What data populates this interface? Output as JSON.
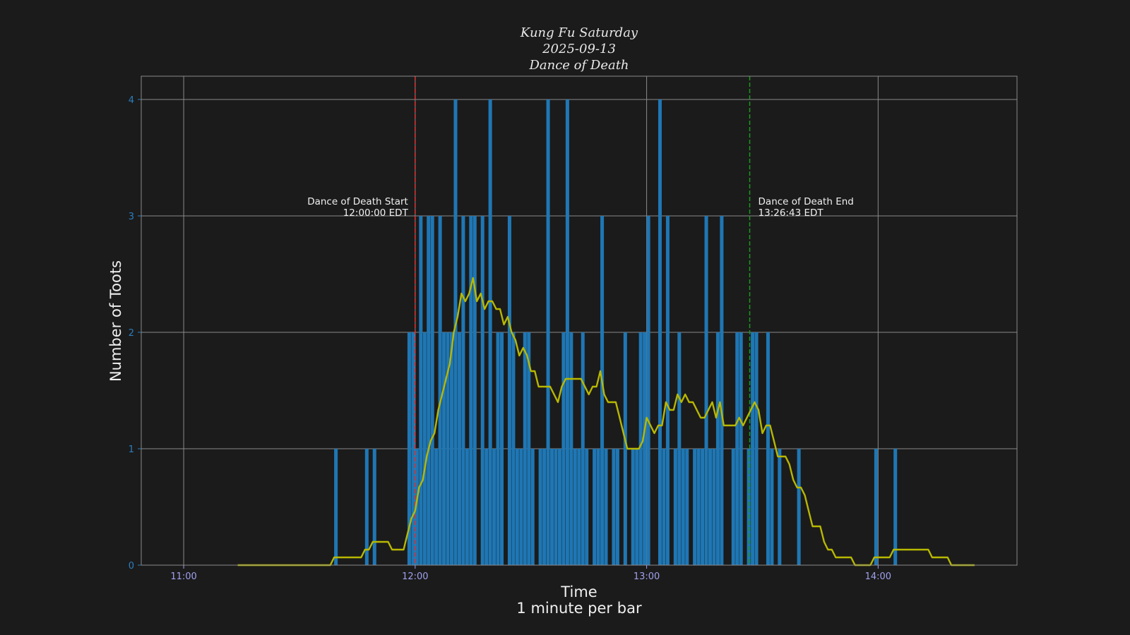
{
  "chart_data": {
    "type": "bar",
    "title": [
      "Kung Fu Saturday",
      "2025-09-13",
      "Dance of Death"
    ],
    "xlabel": [
      "Time",
      "1 minute per bar"
    ],
    "ylabel": "Number of Toots",
    "xlim": [
      "10:49",
      "14:36"
    ],
    "ylim": [
      0,
      4.2
    ],
    "x_ticks": [
      "11:00",
      "12:00",
      "13:00",
      "14:00"
    ],
    "y_ticks": [
      "0",
      "1",
      "2",
      "3",
      "4"
    ],
    "grid": true,
    "bars": {
      "color": "#1f77b4",
      "start": "11:39",
      "values": [
        1,
        0,
        0,
        0,
        0,
        0,
        0,
        0,
        1,
        0,
        1,
        0,
        0,
        0,
        0,
        0,
        0,
        0,
        0,
        2,
        2,
        1,
        3,
        2,
        3,
        3,
        1,
        3,
        2,
        2,
        2,
        4,
        2,
        3,
        1,
        3,
        3,
        0,
        3,
        1,
        4,
        1,
        2,
        2,
        0,
        3,
        2,
        1,
        1,
        2,
        2,
        1,
        0,
        1,
        1,
        4,
        1,
        1,
        1,
        2,
        4,
        2,
        1,
        1,
        2,
        1,
        0,
        1,
        1,
        3,
        1,
        0,
        1,
        1,
        0,
        2,
        0,
        1,
        1,
        2,
        2,
        3,
        0,
        0,
        4,
        1,
        3,
        0,
        1,
        2,
        1,
        1,
        0,
        1,
        1,
        1,
        3,
        1,
        1,
        2,
        3,
        0,
        0,
        1,
        2,
        2,
        0,
        1,
        2,
        2,
        0,
        0,
        2,
        1,
        0,
        1,
        0,
        0,
        0,
        0,
        1,
        0,
        0,
        0,
        0,
        0,
        0,
        0,
        0,
        0,
        0,
        0,
        0,
        0,
        0,
        0,
        0,
        0,
        0,
        0,
        1,
        0,
        0,
        0,
        0,
        1
      ]
    },
    "line": {
      "color": "#b8b800",
      "x_range": [
        "11:14",
        "14:25"
      ]
    },
    "annotations": [
      {
        "time": "12:00:00",
        "color": "#e03030",
        "label": "Dance of Death Start",
        "sublabel": "12:00:00 EDT"
      },
      {
        "time": "13:26:43",
        "color": "#1a9a1a",
        "label": "Dance of Death End",
        "sublabel": "13:26:43 EDT"
      }
    ],
    "colors": {
      "background": "#1b1b1b",
      "grid": "#8a8a8a",
      "y_tick_label": "#2a7fc0",
      "x_tick_label": "#a0a0ee"
    }
  }
}
